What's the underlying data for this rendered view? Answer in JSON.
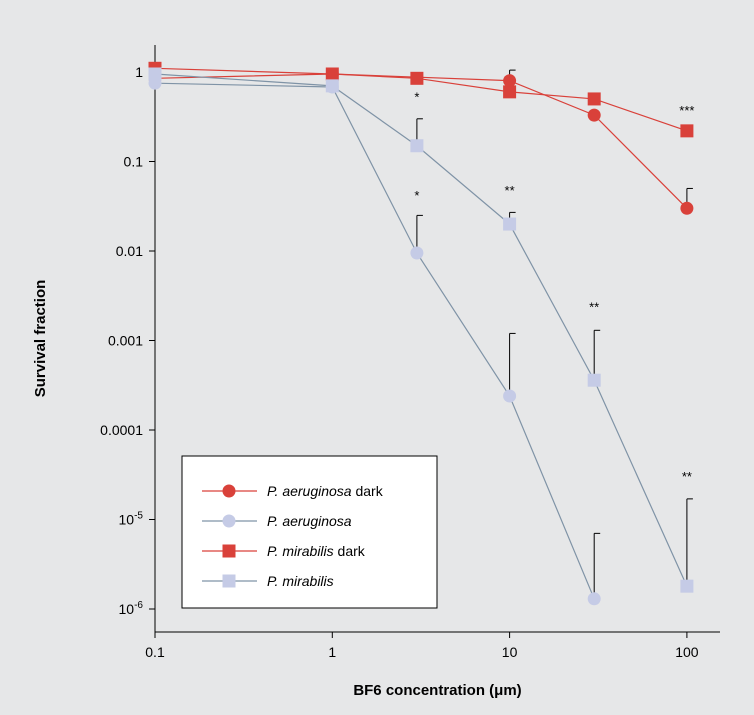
{
  "chart_data": {
    "type": "line",
    "title": "",
    "xlabel": "BF6 concentration (μm)",
    "ylabel": "Survival fraction",
    "x_scale": "log",
    "y_scale": "log",
    "xlim": [
      0.1,
      100
    ],
    "ylim": [
      5e-07,
      2
    ],
    "x_ticks": [
      {
        "value": 0.1,
        "label": "0.1"
      },
      {
        "value": 1,
        "label": "1"
      },
      {
        "value": 10,
        "label": "10"
      },
      {
        "value": 100,
        "label": "100"
      }
    ],
    "y_ticks": [
      {
        "value": 1,
        "label": "1",
        "sup": ""
      },
      {
        "value": 0.1,
        "label": "0.1",
        "sup": ""
      },
      {
        "value": 0.01,
        "label": "0.01",
        "sup": ""
      },
      {
        "value": 0.001,
        "label": "0.001",
        "sup": ""
      },
      {
        "value": 0.0001,
        "label": "0.0001",
        "sup": ""
      },
      {
        "value": 1e-05,
        "label": "10",
        "sup": "-5"
      },
      {
        "value": 1e-06,
        "label": "10",
        "sup": "-6"
      }
    ],
    "grid": false,
    "legend_position": "bottom-left",
    "series": [
      {
        "name": "P. aeruginosa",
        "name_suffix": " dark",
        "marker": "circle",
        "color": "#d9413a",
        "x": [
          0.1,
          1,
          10,
          30,
          100
        ],
        "y": [
          0.85,
          0.95,
          0.8,
          0.33,
          0.03
        ],
        "err_upper": [
          null,
          null,
          1.05,
          null,
          0.05
        ]
      },
      {
        "name": "P. aeruginosa",
        "name_suffix": "",
        "marker": "circle",
        "color": "#c5cbe6",
        "line_color": "#7f93a6",
        "x": [
          0.1,
          1,
          3,
          10,
          30
        ],
        "y": [
          0.75,
          0.68,
          0.0095,
          0.00024,
          1.3e-06
        ],
        "err_upper": [
          null,
          null,
          0.025,
          0.0012,
          7e-06
        ]
      },
      {
        "name": "P. mirabilis",
        "name_suffix": " dark",
        "marker": "square",
        "color": "#d9413a",
        "x": [
          0.1,
          1,
          3,
          10,
          30,
          100
        ],
        "y": [
          1.1,
          0.95,
          0.85,
          0.6,
          0.5,
          0.22
        ],
        "err_upper": [
          null,
          null,
          null,
          null,
          null,
          null
        ]
      },
      {
        "name": "P. mirabilis",
        "name_suffix": "",
        "marker": "square",
        "color": "#c5cbe6",
        "line_color": "#7f93a6",
        "x": [
          0.1,
          1,
          3,
          10,
          30,
          100
        ],
        "y": [
          0.95,
          0.7,
          0.15,
          0.02,
          0.00036,
          1.8e-06
        ],
        "err_upper": [
          null,
          null,
          0.3,
          0.027,
          0.0013,
          1.7e-05
        ]
      }
    ],
    "annotations": [
      {
        "text": "*",
        "x": 3,
        "y": 0.47
      },
      {
        "text": "*",
        "x": 3,
        "y": 0.037
      },
      {
        "text": "**",
        "x": 10,
        "y": 0.042
      },
      {
        "text": "**",
        "x": 30,
        "y": 0.0021
      },
      {
        "text": "**",
        "x": 100,
        "y": 2.7e-05
      },
      {
        "text": "***",
        "x": 100,
        "y": 0.33
      }
    ]
  }
}
